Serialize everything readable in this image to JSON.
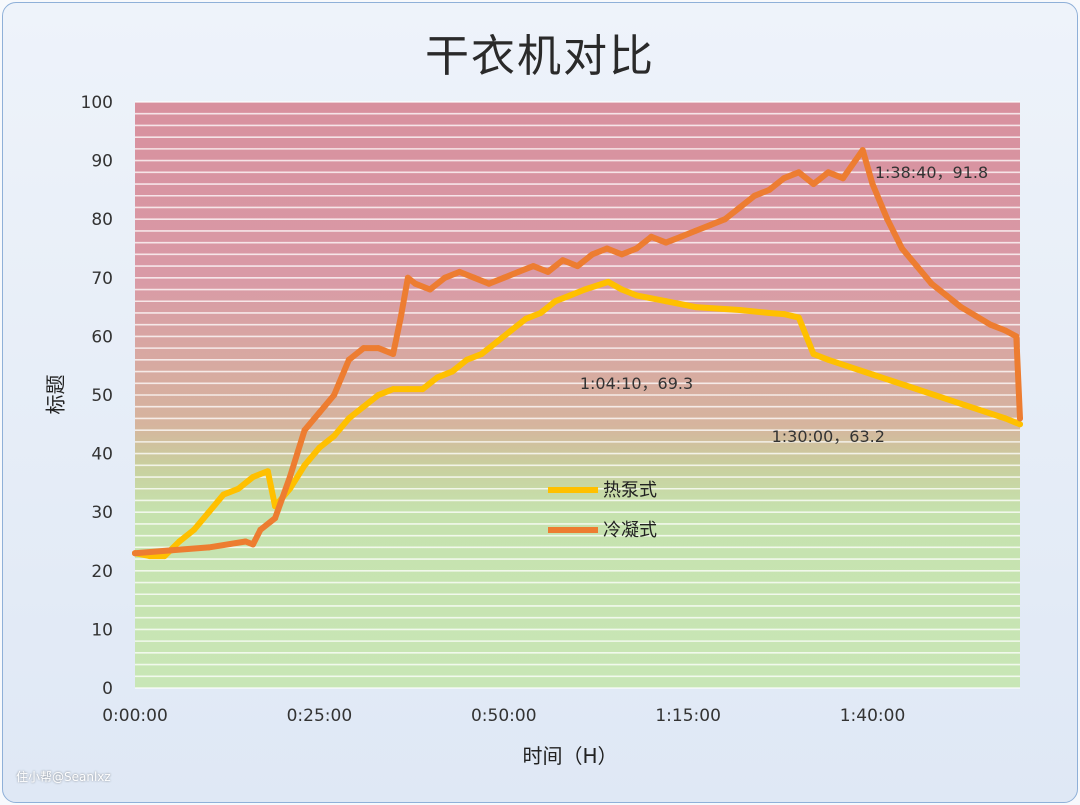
{
  "chart_data": {
    "type": "line",
    "title": "干衣机对比",
    "xlabel": "时间（H）",
    "ylabel": "标题",
    "x_unit": "h:mm:ss",
    "xlim": [
      "0:00:00",
      "2:00:00"
    ],
    "ylim": [
      0,
      100
    ],
    "y_ticks": [
      0,
      10,
      20,
      30,
      40,
      50,
      60,
      70,
      80,
      90,
      100
    ],
    "x_ticks": [
      "0:00:00",
      "0:25:00",
      "0:50:00",
      "1:15:00",
      "1:40:00"
    ],
    "background_zones": [
      {
        "from": 0,
        "to": 40,
        "color": "#c6e2ae"
      },
      {
        "from": 45,
        "to": 70,
        "color": "#d6b49e"
      },
      {
        "from": 70,
        "to": 100,
        "color": "#d99aa6"
      }
    ],
    "grid": true,
    "legend": "center",
    "series": [
      {
        "name": "热泵式",
        "color": "#ffc000",
        "points": [
          [
            "0:00:00",
            23
          ],
          [
            "0:02:00",
            22.5
          ],
          [
            "0:04:00",
            22.5
          ],
          [
            "0:06:00",
            25
          ],
          [
            "0:08:00",
            27
          ],
          [
            "0:10:00",
            30
          ],
          [
            "0:12:00",
            33
          ],
          [
            "0:14:00",
            34
          ],
          [
            "0:16:00",
            36
          ],
          [
            "0:18:00",
            37
          ],
          [
            "0:19:00",
            31
          ],
          [
            "0:21:00",
            34
          ],
          [
            "0:23:00",
            38
          ],
          [
            "0:25:00",
            41
          ],
          [
            "0:27:00",
            43
          ],
          [
            "0:29:00",
            46
          ],
          [
            "0:31:00",
            48
          ],
          [
            "0:33:00",
            50
          ],
          [
            "0:35:00",
            51
          ],
          [
            "0:37:00",
            51
          ],
          [
            "0:39:00",
            51
          ],
          [
            "0:41:00",
            53
          ],
          [
            "0:43:00",
            54
          ],
          [
            "0:45:00",
            56
          ],
          [
            "0:47:00",
            57
          ],
          [
            "0:49:00",
            59
          ],
          [
            "0:51:00",
            61
          ],
          [
            "0:53:00",
            63
          ],
          [
            "0:55:00",
            64
          ],
          [
            "0:57:00",
            66
          ],
          [
            "0:59:00",
            67
          ],
          [
            "1:01:00",
            68
          ],
          [
            "1:04:10",
            69.3
          ],
          [
            "1:06:00",
            68
          ],
          [
            "1:08:00",
            67
          ],
          [
            "1:12:00",
            66
          ],
          [
            "1:16:00",
            65
          ],
          [
            "1:22:00",
            64.5
          ],
          [
            "1:26:00",
            64
          ],
          [
            "1:28:00",
            63.8
          ],
          [
            "1:30:00",
            63.2
          ],
          [
            "1:32:00",
            57
          ],
          [
            "1:34:00",
            56
          ],
          [
            "1:40:00",
            53.5
          ],
          [
            "1:46:00",
            51
          ],
          [
            "1:52:00",
            48.5
          ],
          [
            "1:58:00",
            46
          ],
          [
            "2:00:00",
            45
          ]
        ]
      },
      {
        "name": "冷凝式",
        "color": "#ed7d31",
        "points": [
          [
            "0:00:00",
            23
          ],
          [
            "0:05:00",
            23.5
          ],
          [
            "0:10:00",
            24
          ],
          [
            "0:15:00",
            25
          ],
          [
            "0:16:00",
            24.5
          ],
          [
            "0:17:00",
            27
          ],
          [
            "0:19:00",
            29
          ],
          [
            "0:21:00",
            36
          ],
          [
            "0:23:00",
            44
          ],
          [
            "0:25:00",
            47
          ],
          [
            "0:27:00",
            50
          ],
          [
            "0:29:00",
            56
          ],
          [
            "0:31:00",
            58
          ],
          [
            "0:33:00",
            58
          ],
          [
            "0:35:00",
            57
          ],
          [
            "0:36:00",
            63
          ],
          [
            "0:37:00",
            70
          ],
          [
            "0:38:00",
            69
          ],
          [
            "0:40:00",
            68
          ],
          [
            "0:42:00",
            70
          ],
          [
            "0:44:00",
            71
          ],
          [
            "0:46:00",
            70
          ],
          [
            "0:48:00",
            69
          ],
          [
            "0:50:00",
            70
          ],
          [
            "0:52:00",
            71
          ],
          [
            "0:54:00",
            72
          ],
          [
            "0:56:00",
            71
          ],
          [
            "0:58:00",
            73
          ],
          [
            "1:00:00",
            72
          ],
          [
            "1:02:00",
            74
          ],
          [
            "1:04:00",
            75
          ],
          [
            "1:06:00",
            74
          ],
          [
            "1:08:00",
            75
          ],
          [
            "1:10:00",
            77
          ],
          [
            "1:12:00",
            76
          ],
          [
            "1:14:00",
            77
          ],
          [
            "1:16:00",
            78
          ],
          [
            "1:18:00",
            79
          ],
          [
            "1:20:00",
            80
          ],
          [
            "1:22:00",
            82
          ],
          [
            "1:24:00",
            84
          ],
          [
            "1:26:00",
            85
          ],
          [
            "1:28:00",
            87
          ],
          [
            "1:30:00",
            88
          ],
          [
            "1:32:00",
            86
          ],
          [
            "1:34:00",
            88
          ],
          [
            "1:36:00",
            87
          ],
          [
            "1:38:40",
            91.8
          ],
          [
            "1:40:00",
            86
          ],
          [
            "1:42:00",
            80
          ],
          [
            "1:44:00",
            75
          ],
          [
            "1:46:00",
            72
          ],
          [
            "1:48:00",
            69
          ],
          [
            "1:50:00",
            67
          ],
          [
            "1:52:00",
            65
          ],
          [
            "1:54:00",
            63.5
          ],
          [
            "1:56:00",
            62
          ],
          [
            "1:58:00",
            61
          ],
          [
            "1:59:30",
            60
          ],
          [
            "2:00:00",
            46
          ]
        ]
      }
    ],
    "annotations": [
      {
        "text": "1:38:40，91.8",
        "x": "1:48:00",
        "y": 87
      },
      {
        "text": "1:04:10，69.3",
        "x": "1:08:00",
        "y": 51
      },
      {
        "text": "1:30:00，63.2",
        "x": "1:34:00",
        "y": 42
      }
    ]
  },
  "watermark": "住小帮@Seanlxz"
}
